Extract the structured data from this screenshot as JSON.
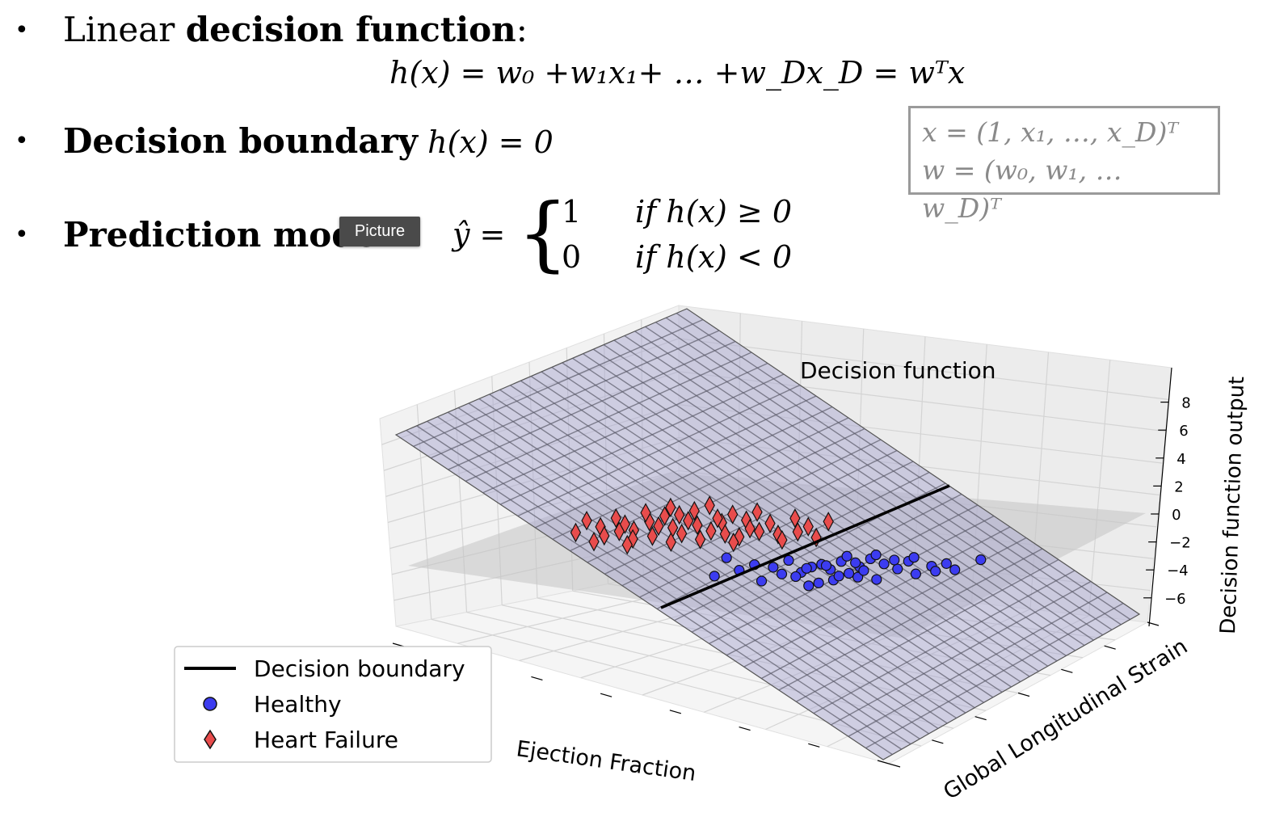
{
  "slide": {
    "bullet_glyph": "•",
    "line1": {
      "prefix": "Linear ",
      "bold": "decision function",
      "suffix": ":"
    },
    "formula": "h(x) = w₀ +w₁x₁+ … +w_Dx_D = wᵀx",
    "line2": {
      "bold": "Decision boundary",
      "math": " h(x) = 0"
    },
    "line3": {
      "bold": "Prediction model"
    },
    "defs": [
      "x = (1, x₁, …, x_D)ᵀ",
      "w = (w₀, w₁, … w_D)ᵀ"
    ],
    "piecewise": {
      "lhs": "ŷ =",
      "rows": [
        {
          "value": "1",
          "cond": "if h(x) ≥ 0"
        },
        {
          "value": "0",
          "cond": "if h(x) < 0"
        }
      ]
    },
    "tooltip": "Picture"
  },
  "chart_data": {
    "type": "scatter",
    "projection": "3d",
    "title": "Decision function",
    "xlabel": "Ejection Fraction",
    "ylabel": "Global Longitudinal Strain",
    "zlabel": "Decision function output",
    "zticks": [
      8,
      6,
      4,
      2,
      0,
      -2,
      -4,
      -6
    ],
    "surface": "plane h(x)",
    "zero_plane": "h(x) = 0",
    "legend_position": "bottom-left",
    "legend": [
      {
        "label": "Decision boundary",
        "marker": "line",
        "color": "#000000"
      },
      {
        "label": "Healthy",
        "marker": "circle",
        "color": "#3c3cf0"
      },
      {
        "label": "Heart Failure",
        "marker": "diamond",
        "color": "#e84c4c"
      }
    ],
    "series": [
      {
        "name": "Healthy",
        "points": [
          [
            0.6,
            0.4
          ],
          [
            0.62,
            0.42
          ],
          [
            0.64,
            0.38
          ],
          [
            0.66,
            0.44
          ],
          [
            0.58,
            0.36
          ],
          [
            0.7,
            0.4
          ],
          [
            0.72,
            0.46
          ],
          [
            0.68,
            0.35
          ],
          [
            0.75,
            0.42
          ],
          [
            0.78,
            0.38
          ],
          [
            0.55,
            0.45
          ],
          [
            0.52,
            0.4
          ],
          [
            0.8,
            0.44
          ],
          [
            0.65,
            0.3
          ],
          [
            0.7,
            0.32
          ],
          [
            0.74,
            0.3
          ],
          [
            0.57,
            0.33
          ],
          [
            0.62,
            0.28
          ],
          [
            0.48,
            0.42
          ],
          [
            0.45,
            0.38
          ],
          [
            0.85,
            0.4
          ],
          [
            0.88,
            0.42
          ],
          [
            0.82,
            0.34
          ],
          [
            0.9,
            0.37
          ],
          [
            0.67,
            0.48
          ],
          [
            0.73,
            0.49
          ],
          [
            0.6,
            0.26
          ],
          [
            0.5,
            0.3
          ],
          [
            0.42,
            0.47
          ],
          [
            0.95,
            0.45
          ],
          [
            0.63,
            0.41
          ],
          [
            0.69,
            0.43
          ],
          [
            0.77,
            0.45
          ],
          [
            0.59,
            0.39
          ],
          [
            0.71,
            0.37
          ],
          [
            0.66,
            0.33
          ],
          [
            0.81,
            0.47
          ],
          [
            0.54,
            0.35
          ],
          [
            0.86,
            0.36
          ],
          [
            0.4,
            0.34
          ]
        ]
      },
      {
        "name": "Heart Failure",
        "points": [
          [
            0.2,
            0.7
          ],
          [
            0.25,
            0.72
          ],
          [
            0.3,
            0.68
          ],
          [
            0.22,
            0.66
          ],
          [
            0.18,
            0.74
          ],
          [
            0.35,
            0.7
          ],
          [
            0.28,
            0.76
          ],
          [
            0.4,
            0.72
          ],
          [
            0.32,
            0.64
          ],
          [
            0.15,
            0.68
          ],
          [
            0.45,
            0.74
          ],
          [
            0.38,
            0.66
          ],
          [
            0.26,
            0.62
          ],
          [
            0.42,
            0.78
          ],
          [
            0.5,
            0.72
          ],
          [
            0.12,
            0.72
          ],
          [
            0.55,
            0.76
          ],
          [
            0.34,
            0.8
          ],
          [
            0.48,
            0.66
          ],
          [
            0.22,
            0.6
          ],
          [
            0.3,
            0.58
          ],
          [
            0.58,
            0.7
          ],
          [
            0.36,
            0.6
          ],
          [
            0.44,
            0.62
          ],
          [
            0.16,
            0.62
          ],
          [
            0.52,
            0.64
          ],
          [
            0.27,
            0.69
          ],
          [
            0.33,
            0.73
          ],
          [
            0.39,
            0.75
          ],
          [
            0.24,
            0.78
          ],
          [
            0.46,
            0.68
          ],
          [
            0.19,
            0.65
          ],
          [
            0.41,
            0.64
          ],
          [
            0.56,
            0.66
          ],
          [
            0.1,
            0.64
          ],
          [
            0.29,
            0.82
          ],
          [
            0.47,
            0.8
          ],
          [
            0.37,
            0.84
          ],
          [
            0.6,
            0.62
          ],
          [
            0.14,
            0.58
          ],
          [
            0.53,
            0.6
          ],
          [
            0.31,
            0.77
          ],
          [
            0.21,
            0.56
          ],
          [
            0.43,
            0.58
          ],
          [
            0.62,
            0.74
          ]
        ]
      }
    ]
  }
}
